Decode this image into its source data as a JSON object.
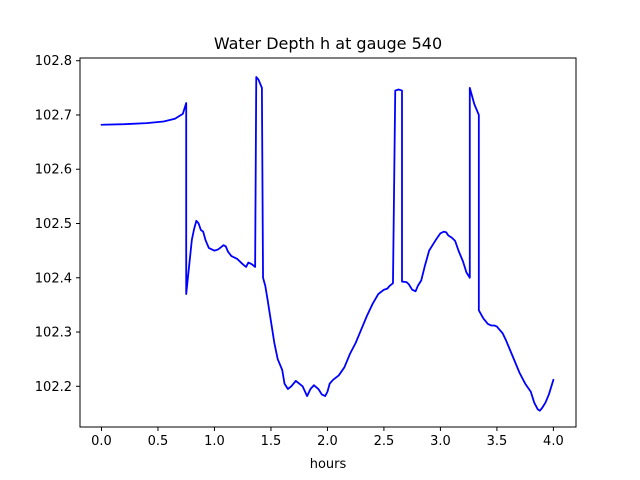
{
  "chart_data": {
    "type": "line",
    "title": "Water Depth h at gauge 540",
    "xlabel": "hours",
    "ylabel": "",
    "xlim": [
      -0.19,
      4.2
    ],
    "ylim": [
      102.125,
      102.805
    ],
    "xticks": [
      0.0,
      0.5,
      1.0,
      1.5,
      2.0,
      2.5,
      3.0,
      3.5,
      4.0
    ],
    "xtick_labels": [
      "0.0",
      "0.5",
      "1.0",
      "1.5",
      "2.0",
      "2.5",
      "3.0",
      "3.5",
      "4.0"
    ],
    "yticks": [
      102.2,
      102.3,
      102.4,
      102.5,
      102.6,
      102.7,
      102.8
    ],
    "ytick_labels": [
      "102.2",
      "102.3",
      "102.4",
      "102.5",
      "102.6",
      "102.7",
      "102.8"
    ],
    "grid": false,
    "legend": "none",
    "series": [
      {
        "color": "#0000ff",
        "x": [
          0.0,
          0.2,
          0.4,
          0.55,
          0.65,
          0.72,
          0.75,
          0.75,
          0.76,
          0.78,
          0.8,
          0.82,
          0.84,
          0.86,
          0.88,
          0.9,
          0.92,
          0.95,
          1.0,
          1.03,
          1.05,
          1.08,
          1.1,
          1.12,
          1.15,
          1.2,
          1.25,
          1.28,
          1.3,
          1.33,
          1.36,
          1.37,
          1.37,
          1.39,
          1.42,
          1.43,
          1.45,
          1.47,
          1.5,
          1.53,
          1.56,
          1.6,
          1.62,
          1.65,
          1.68,
          1.72,
          1.75,
          1.78,
          1.82,
          1.85,
          1.88,
          1.92,
          1.95,
          1.98,
          2.0,
          2.02,
          2.05,
          2.1,
          2.15,
          2.2,
          2.25,
          2.3,
          2.35,
          2.4,
          2.45,
          2.5,
          2.53,
          2.55,
          2.58,
          2.6,
          2.6,
          2.63,
          2.66,
          2.66,
          2.7,
          2.72,
          2.75,
          2.78,
          2.8,
          2.83,
          2.86,
          2.9,
          2.93,
          2.96,
          3.0,
          3.03,
          3.05,
          3.07,
          3.1,
          3.13,
          3.16,
          3.2,
          3.23,
          3.26,
          3.26,
          3.3,
          3.34,
          3.34,
          3.38,
          3.42,
          3.45,
          3.48,
          3.5,
          3.52,
          3.55,
          3.58,
          3.62,
          3.66,
          3.7,
          3.75,
          3.8,
          3.83,
          3.86,
          3.88,
          3.9,
          3.93,
          3.96,
          4.0
        ],
        "y": [
          102.682,
          102.683,
          102.685,
          102.688,
          102.693,
          102.702,
          102.722,
          102.37,
          102.39,
          102.43,
          102.47,
          102.49,
          102.505,
          102.5,
          102.488,
          102.485,
          102.47,
          102.455,
          102.45,
          102.452,
          102.455,
          102.46,
          102.458,
          102.448,
          102.44,
          102.435,
          102.425,
          102.42,
          102.428,
          102.425,
          102.42,
          102.77,
          102.77,
          102.765,
          102.75,
          102.4,
          102.385,
          102.36,
          102.32,
          102.28,
          102.25,
          102.23,
          102.205,
          102.195,
          102.2,
          102.21,
          102.205,
          102.2,
          102.182,
          102.195,
          102.202,
          102.195,
          102.185,
          102.182,
          102.19,
          102.205,
          102.212,
          102.22,
          102.235,
          102.26,
          102.28,
          102.305,
          102.33,
          102.352,
          102.37,
          102.378,
          102.38,
          102.385,
          102.39,
          102.743,
          102.745,
          102.747,
          102.745,
          102.393,
          102.392,
          102.388,
          102.378,
          102.375,
          102.385,
          102.395,
          102.42,
          102.45,
          102.46,
          102.47,
          102.482,
          102.485,
          102.484,
          102.478,
          102.474,
          102.468,
          102.45,
          102.43,
          102.41,
          102.4,
          102.75,
          102.72,
          102.7,
          102.34,
          102.325,
          102.315,
          102.312,
          102.312,
          102.31,
          102.305,
          102.298,
          102.285,
          102.265,
          102.245,
          102.225,
          102.205,
          102.19,
          102.17,
          102.158,
          102.155,
          102.16,
          102.17,
          102.185,
          102.212
        ]
      }
    ]
  }
}
